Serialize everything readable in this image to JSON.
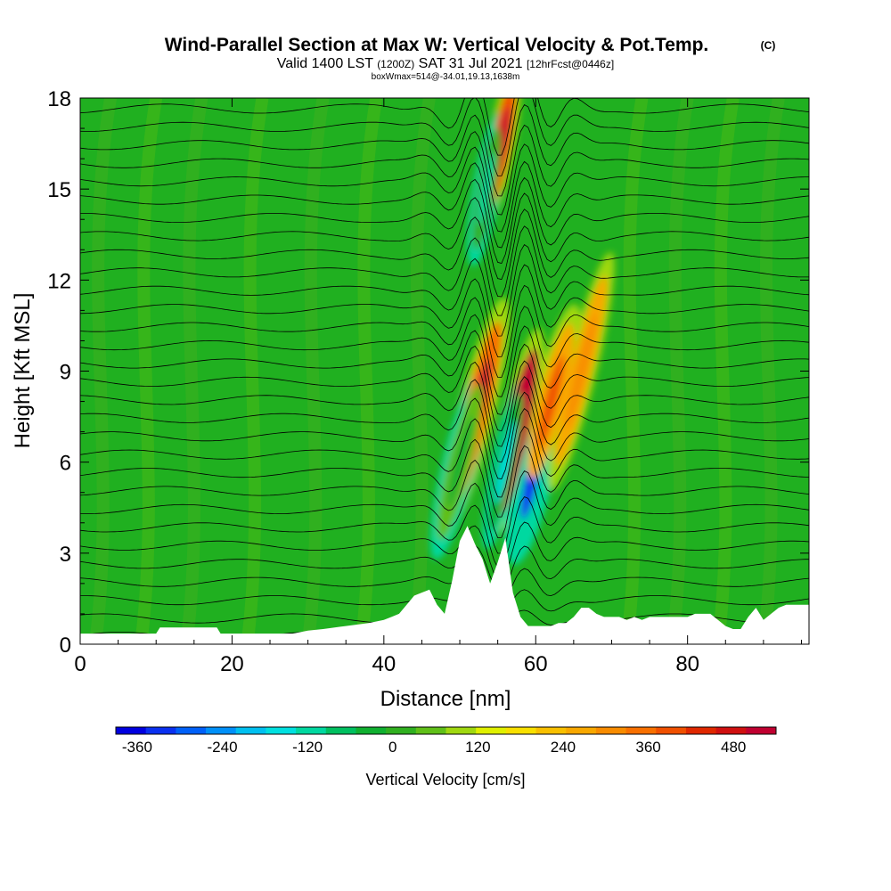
{
  "header": {
    "title": "Wind-Parallel Section at Max W: Vertical Velocity & Pot.Temp.",
    "copyright": "(C)",
    "valid_prefix": "Valid 1400 LST",
    "valid_utc": "(1200Z)",
    "valid_date": "SAT 31 Jul 2021",
    "forecast": "[12hrFcst@0446z]",
    "box_info": "boxWmax=514@-34.01,19.13,1638m"
  },
  "chart_data": {
    "type": "heatmap",
    "xlabel": "Distance [nm]",
    "ylabel": "Height [Kft MSL]",
    "xlim": [
      0,
      96
    ],
    "ylim": [
      0,
      18
    ],
    "x_ticks": [
      0,
      20,
      40,
      60,
      80
    ],
    "y_ticks": [
      0,
      3,
      6,
      9,
      12,
      15,
      18
    ],
    "colorbar": {
      "label": "Vertical Velocity [cm/s]",
      "range": [
        -390,
        540
      ],
      "step": 30,
      "ticks": [
        -360,
        -240,
        -120,
        0,
        120,
        240,
        360,
        480
      ],
      "colors": [
        "#0000e0",
        "#0a30f0",
        "#0060f8",
        "#0090f8",
        "#00c0f0",
        "#00e0e0",
        "#00d8a0",
        "#00c060",
        "#10b030",
        "#30b020",
        "#60c018",
        "#a0d810",
        "#e0f000",
        "#f8e000",
        "#f8c000",
        "#f8a800",
        "#f88c00",
        "#f87000",
        "#f05000",
        "#e02800",
        "#d01010",
        "#c00030"
      ]
    },
    "contour_field": "Potential Temperature",
    "max_w_cms": 514,
    "max_w_location": {
      "lat": -34.01,
      "lon": 19.13,
      "height_m": 1638
    },
    "vertical_velocity_features": [
      {
        "x_nm": 57.5,
        "y_kft": 7.0,
        "w_cms": 514
      },
      {
        "x_nm": 59.5,
        "y_kft": 5.5,
        "w_cms": -360
      },
      {
        "x_nm": 56.0,
        "y_kft": 6.0,
        "w_cms": -240
      },
      {
        "x_nm": 52.0,
        "y_kft": 7.5,
        "w_cms": 240
      },
      {
        "x_nm": 50.0,
        "y_kft": 6.0,
        "w_cms": -150
      },
      {
        "x_nm": 62.0,
        "y_kft": 8.0,
        "w_cms": 160
      },
      {
        "x_nm": 66.0,
        "y_kft": 9.0,
        "w_cms": 110
      },
      {
        "x_nm": 55.5,
        "y_kft": 16.5,
        "w_cms": 300
      },
      {
        "x_nm": 53.5,
        "y_kft": 15.0,
        "w_cms": -200
      }
    ],
    "terrain_kft": {
      "x": [
        0,
        10,
        10.5,
        18,
        18.5,
        20,
        20.5,
        24,
        25,
        28,
        30,
        32,
        35,
        38,
        40,
        41,
        42,
        43,
        44,
        45,
        46,
        47,
        48,
        49,
        50,
        51,
        52,
        53,
        54,
        55,
        56,
        57,
        58,
        59,
        60,
        61,
        62,
        63,
        64,
        65,
        66,
        67,
        68,
        69,
        70,
        71,
        72,
        73,
        74,
        75,
        76,
        77,
        78,
        79,
        80,
        81,
        82,
        83,
        84,
        85,
        86,
        87,
        88,
        89,
        90,
        91,
        92,
        93,
        94,
        95,
        96
      ],
      "y": [
        0.35,
        0.35,
        0.55,
        0.55,
        0.35,
        0.35,
        0.35,
        0.35,
        0.35,
        0.35,
        0.45,
        0.5,
        0.6,
        0.7,
        0.8,
        0.9,
        1.0,
        1.3,
        1.6,
        1.7,
        1.8,
        1.3,
        1.0,
        2.1,
        3.4,
        3.9,
        3.3,
        2.8,
        2.0,
        2.7,
        3.5,
        1.7,
        0.9,
        0.6,
        0.6,
        0.6,
        0.6,
        0.7,
        0.7,
        0.9,
        1.2,
        1.2,
        1.0,
        0.9,
        0.9,
        0.9,
        0.8,
        0.9,
        0.8,
        0.9,
        0.9,
        0.9,
        0.9,
        0.9,
        0.9,
        1.0,
        1.0,
        1.0,
        0.8,
        0.6,
        0.5,
        0.5,
        0.9,
        1.2,
        0.8,
        1.0,
        1.2,
        1.3,
        1.3,
        1.3,
        1.3
      ]
    }
  }
}
